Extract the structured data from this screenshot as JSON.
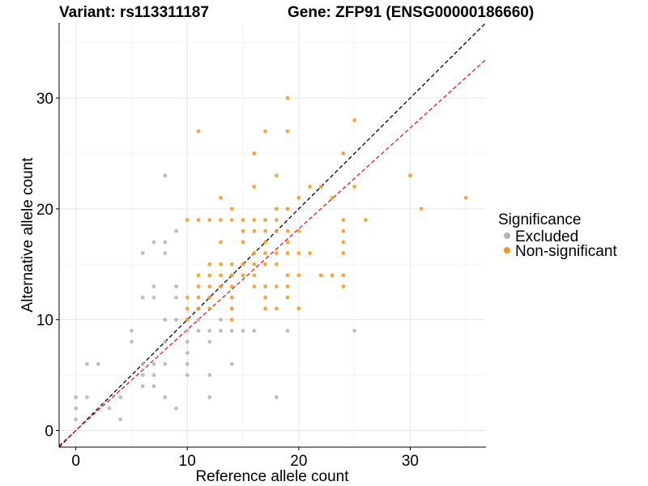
{
  "chart_data": {
    "type": "scatter",
    "title_left": "Variant: rs113311187",
    "title_right": "Gene: ZFP91 (ENSG00000186660)",
    "xlabel": "Reference allele count",
    "ylabel": "Alternative allele count",
    "xlim": [
      -1.5,
      36.8
    ],
    "ylim": [
      -1.5,
      36.8
    ],
    "xticks": [
      0,
      10,
      20,
      30
    ],
    "yticks": [
      0,
      10,
      20,
      30
    ],
    "grid": true,
    "reference_lines": [
      {
        "name": "identity",
        "slope": 1.0,
        "intercept": 0,
        "color": "#000000",
        "dash": "dashed"
      },
      {
        "name": "fit",
        "slope": 0.91,
        "intercept": 0,
        "color": "#e31a1c",
        "dash": "dashed"
      }
    ],
    "legend": {
      "title": "Significance",
      "position": "right",
      "entries": [
        {
          "label": "Excluded",
          "color": "#b3b3b3"
        },
        {
          "label": "Non-significant",
          "color": "#f7941d"
        }
      ]
    },
    "series": [
      {
        "name": "Excluded",
        "color": "#b3b3b3",
        "points": [
          [
            0,
            1
          ],
          [
            0,
            2
          ],
          [
            0,
            3
          ],
          [
            1,
            3
          ],
          [
            1,
            6
          ],
          [
            2,
            6
          ],
          [
            3,
            2
          ],
          [
            4,
            1
          ],
          [
            4,
            3
          ],
          [
            5,
            8
          ],
          [
            5,
            9
          ],
          [
            6,
            4
          ],
          [
            6,
            5
          ],
          [
            6,
            6
          ],
          [
            6,
            12
          ],
          [
            6,
            16
          ],
          [
            7,
            4
          ],
          [
            7,
            5
          ],
          [
            7,
            6
          ],
          [
            7,
            12
          ],
          [
            7,
            13
          ],
          [
            7,
            17
          ],
          [
            8,
            3
          ],
          [
            8,
            6
          ],
          [
            8,
            8
          ],
          [
            8,
            10
          ],
          [
            8,
            16
          ],
          [
            8,
            17
          ],
          [
            8,
            23
          ],
          [
            9,
            2
          ],
          [
            9,
            10
          ],
          [
            9,
            12
          ],
          [
            9,
            13
          ],
          [
            9,
            18
          ],
          [
            10,
            5
          ],
          [
            10,
            6
          ],
          [
            10,
            7
          ],
          [
            10,
            8
          ],
          [
            10,
            9
          ],
          [
            10,
            10
          ],
          [
            11,
            9
          ],
          [
            11,
            10
          ],
          [
            12,
            3
          ],
          [
            12,
            5
          ],
          [
            12,
            8
          ],
          [
            12,
            9
          ],
          [
            13,
            9
          ],
          [
            13,
            10
          ],
          [
            14,
            6
          ],
          [
            14,
            9
          ],
          [
            15,
            9
          ],
          [
            16,
            9
          ],
          [
            18,
            3
          ],
          [
            19,
            9
          ],
          [
            25,
            9
          ]
        ]
      },
      {
        "name": "Non-significant",
        "color": "#f7941d",
        "points": [
          [
            10,
            10
          ],
          [
            10,
            11
          ],
          [
            10,
            12
          ],
          [
            10,
            19
          ],
          [
            11,
            11
          ],
          [
            11,
            12
          ],
          [
            11,
            13
          ],
          [
            11,
            14
          ],
          [
            11,
            19
          ],
          [
            11,
            27
          ],
          [
            12,
            11
          ],
          [
            12,
            12
          ],
          [
            12,
            13
          ],
          [
            12,
            14
          ],
          [
            12,
            15
          ],
          [
            12,
            19
          ],
          [
            13,
            13
          ],
          [
            13,
            14
          ],
          [
            13,
            15
          ],
          [
            13,
            17
          ],
          [
            13,
            19
          ],
          [
            13,
            21
          ],
          [
            14,
            10
          ],
          [
            14,
            11
          ],
          [
            14,
            12
          ],
          [
            14,
            13
          ],
          [
            14,
            14
          ],
          [
            14,
            15
          ],
          [
            14,
            19
          ],
          [
            14,
            20
          ],
          [
            15,
            14
          ],
          [
            15,
            15
          ],
          [
            15,
            17
          ],
          [
            15,
            18
          ],
          [
            15,
            19
          ],
          [
            16,
            13
          ],
          [
            16,
            14
          ],
          [
            16,
            15
          ],
          [
            16,
            16
          ],
          [
            16,
            18
          ],
          [
            16,
            19
          ],
          [
            16,
            22
          ],
          [
            16,
            25
          ],
          [
            17,
            11
          ],
          [
            17,
            12
          ],
          [
            17,
            13
          ],
          [
            17,
            15
          ],
          [
            17,
            16
          ],
          [
            17,
            17
          ],
          [
            17,
            18
          ],
          [
            17,
            19
          ],
          [
            17,
            27
          ],
          [
            18,
            11
          ],
          [
            18,
            13
          ],
          [
            18,
            15
          ],
          [
            18,
            16
          ],
          [
            18,
            18
          ],
          [
            18,
            19
          ],
          [
            18,
            20
          ],
          [
            18,
            23
          ],
          [
            19,
            12
          ],
          [
            19,
            13
          ],
          [
            19,
            14
          ],
          [
            19,
            16
          ],
          [
            19,
            17
          ],
          [
            19,
            18
          ],
          [
            19,
            20
          ],
          [
            19,
            27
          ],
          [
            19,
            30
          ],
          [
            20,
            11
          ],
          [
            20,
            14
          ],
          [
            20,
            16
          ],
          [
            20,
            18
          ],
          [
            20,
            21
          ],
          [
            21,
            16
          ],
          [
            21,
            22
          ],
          [
            22,
            14
          ],
          [
            22,
            22
          ],
          [
            23,
            14
          ],
          [
            23,
            21
          ],
          [
            24,
            13
          ],
          [
            24,
            14
          ],
          [
            24,
            16
          ],
          [
            24,
            17
          ],
          [
            24,
            18
          ],
          [
            24,
            19
          ],
          [
            24,
            25
          ],
          [
            25,
            22
          ],
          [
            25,
            28
          ],
          [
            26,
            19
          ],
          [
            30,
            23
          ],
          [
            31,
            20
          ],
          [
            35,
            21
          ]
        ]
      }
    ]
  }
}
